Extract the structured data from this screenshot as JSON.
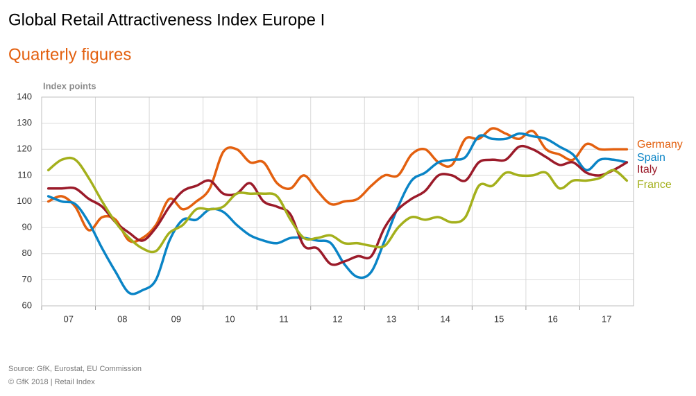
{
  "chart_data": {
    "type": "line",
    "title": "Global Retail Attractiveness Index Europe I",
    "subtitle": "Quarterly figures",
    "y_label": "Index points",
    "source": "Source: GfK, Eurostat, EU  Commission",
    "copyright": "© GfK 2018 | Retail Index",
    "categories": [
      "07",
      null,
      null,
      null,
      "08",
      null,
      null,
      null,
      "09",
      null,
      null,
      null,
      "10",
      null,
      null,
      null,
      "11",
      null,
      null,
      null,
      "12",
      null,
      null,
      null,
      "13",
      null,
      null,
      null,
      "14",
      null,
      null,
      null,
      "15",
      null,
      null,
      null,
      "16",
      null,
      null,
      null,
      "17",
      null,
      null,
      null
    ],
    "ylim": [
      60,
      140
    ],
    "yticks": [
      60,
      70,
      80,
      90,
      100,
      110,
      120,
      130,
      140
    ],
    "grid": true,
    "series": [
      {
        "name": "Germany",
        "color": "#e3600f",
        "values": [
          100,
          102,
          98,
          89,
          94,
          93,
          85,
          86,
          91,
          101,
          97,
          100,
          105,
          119,
          120,
          115,
          115,
          107,
          105,
          110,
          104,
          99,
          100,
          101,
          106,
          110,
          110,
          118,
          120,
          115,
          114,
          124,
          124,
          128,
          126,
          124,
          127,
          120,
          118,
          116,
          122,
          120,
          120,
          120
        ]
      },
      {
        "name": "Spain",
        "color": "#0a84c6",
        "values": [
          102,
          100,
          99,
          92,
          82,
          73,
          65,
          66,
          70,
          85,
          93,
          93,
          97,
          96,
          91,
          87,
          85,
          84,
          86,
          86,
          85,
          84,
          76,
          71,
          73,
          85,
          98,
          108,
          111,
          115,
          116,
          117,
          125,
          124,
          124,
          126,
          125,
          124,
          121,
          118,
          112,
          116,
          116,
          115
        ]
      },
      {
        "name": "Italy",
        "color": "#9b1b2a",
        "values": [
          105,
          105,
          105,
          101,
          98,
          92,
          88,
          85,
          90,
          98,
          104,
          106,
          108,
          103,
          103,
          107,
          100,
          98,
          95,
          83,
          82,
          76,
          77,
          79,
          79,
          90,
          97,
          101,
          104,
          110,
          110,
          108,
          115,
          116,
          116,
          121,
          120,
          117,
          114,
          115,
          111,
          110,
          112,
          115
        ]
      },
      {
        "name": "France",
        "color": "#a4b01c",
        "values": [
          112,
          116,
          116,
          109,
          100,
          92,
          86,
          82,
          81,
          88,
          91,
          97,
          97,
          98,
          103,
          103,
          103,
          102,
          93,
          86,
          86,
          87,
          84,
          84,
          83,
          83,
          90,
          94,
          93,
          94,
          92,
          94,
          106,
          106,
          111,
          110,
          110,
          111,
          105,
          108,
          108,
          109,
          112,
          108
        ]
      }
    ]
  }
}
